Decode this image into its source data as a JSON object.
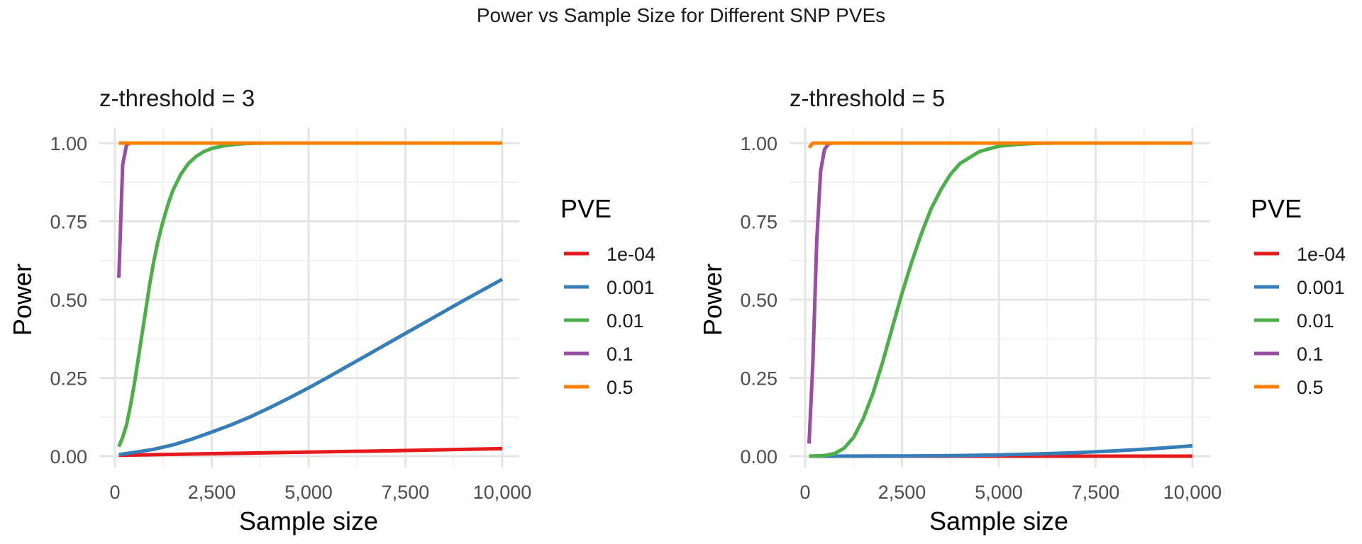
{
  "figure": {
    "title": "Power vs Sample Size for Different SNP PVEs"
  },
  "chart_data": [
    {
      "type": "line",
      "title": "z-threshold = 3",
      "xlabel": "Sample size",
      "ylabel": "Power",
      "xlim": [
        0,
        10000
      ],
      "ylim": [
        0,
        1
      ],
      "x_ticks": [
        0,
        2500,
        5000,
        7500,
        10000
      ],
      "x_tick_labels": [
        "0",
        "2,500",
        "5,000",
        "7,500",
        "10,000"
      ],
      "y_ticks": [
        0,
        0.25,
        0.5,
        0.75,
        1.0
      ],
      "y_tick_labels": [
        "0.00",
        "0.25",
        "0.50",
        "0.75",
        "1.00"
      ],
      "grid": true,
      "legend": {
        "title": "PVE",
        "placement": "right"
      },
      "series": [
        {
          "name": "1e-04",
          "color": "#E41A1C",
          "x": [
            100,
            2500,
            5000,
            7500,
            10000
          ],
          "y": [
            0.003,
            0.008,
            0.013,
            0.018,
            0.024
          ]
        },
        {
          "name": "0.001",
          "color": "#377EB8",
          "x": [
            100,
            500,
            1000,
            1500,
            2000,
            2500,
            3000,
            3500,
            4000,
            4500,
            5000,
            5500,
            6000,
            6500,
            7000,
            7500,
            8000,
            8500,
            9000,
            9500,
            10000
          ],
          "y": [
            0.005,
            0.012,
            0.022,
            0.036,
            0.055,
            0.077,
            0.1,
            0.126,
            0.155,
            0.186,
            0.218,
            0.252,
            0.287,
            0.322,
            0.357,
            0.392,
            0.427,
            0.462,
            0.497,
            0.531,
            0.565
          ]
        },
        {
          "name": "0.01",
          "color": "#4DAF4A",
          "x": [
            100,
            200,
            300,
            400,
            500,
            600,
            700,
            800,
            900,
            1000,
            1100,
            1200,
            1300,
            1400,
            1500,
            1700,
            1900,
            2100,
            2300,
            2500,
            2800,
            3100,
            3500,
            4000,
            5000,
            7500,
            10000
          ],
          "y": [
            0.03,
            0.06,
            0.1,
            0.16,
            0.23,
            0.31,
            0.39,
            0.47,
            0.55,
            0.62,
            0.68,
            0.73,
            0.775,
            0.815,
            0.85,
            0.9,
            0.935,
            0.958,
            0.973,
            0.983,
            0.991,
            0.996,
            0.999,
            1.0,
            1.0,
            1.0,
            1.0
          ]
        },
        {
          "name": "0.1",
          "color": "#984EA3",
          "x": [
            100,
            200,
            300,
            400,
            500,
            1000,
            2500,
            5000,
            7500,
            10000
          ],
          "y": [
            0.57,
            0.93,
            0.995,
            1.0,
            1.0,
            1.0,
            1.0,
            1.0,
            1.0,
            1.0
          ]
        },
        {
          "name": "0.5",
          "color": "#FF7F00",
          "x": [
            100,
            2500,
            5000,
            7500,
            10000
          ],
          "y": [
            1.0,
            1.0,
            1.0,
            1.0,
            1.0
          ]
        }
      ]
    },
    {
      "type": "line",
      "title": "z-threshold = 5",
      "xlabel": "Sample size",
      "ylabel": "Power",
      "xlim": [
        0,
        10000
      ],
      "ylim": [
        0,
        1
      ],
      "x_ticks": [
        0,
        2500,
        5000,
        7500,
        10000
      ],
      "x_tick_labels": [
        "0",
        "2,500",
        "5,000",
        "7,500",
        "10,000"
      ],
      "y_ticks": [
        0,
        0.25,
        0.5,
        0.75,
        1.0
      ],
      "y_tick_labels": [
        "0.00",
        "0.25",
        "0.50",
        "0.75",
        "1.00"
      ],
      "grid": true,
      "legend": {
        "title": "PVE",
        "placement": "right"
      },
      "series": [
        {
          "name": "1e-04",
          "color": "#E41A1C",
          "x": [
            100,
            2500,
            5000,
            7500,
            10000
          ],
          "y": [
            0.0,
            0.0,
            0.0,
            0.0,
            0.0
          ]
        },
        {
          "name": "0.001",
          "color": "#377EB8",
          "x": [
            100,
            2000,
            3000,
            4000,
            5000,
            6000,
            7000,
            8000,
            9000,
            10000
          ],
          "y": [
            0.0,
            0.0005,
            0.001,
            0.002,
            0.004,
            0.007,
            0.011,
            0.017,
            0.024,
            0.033
          ]
        },
        {
          "name": "0.01",
          "color": "#4DAF4A",
          "x": [
            100,
            500,
            750,
            1000,
            1250,
            1500,
            1750,
            2000,
            2250,
            2500,
            2750,
            3000,
            3250,
            3500,
            3750,
            4000,
            4500,
            5000,
            5500,
            6000,
            6500,
            7500,
            10000
          ],
          "y": [
            0.0,
            0.002,
            0.008,
            0.025,
            0.06,
            0.12,
            0.2,
            0.3,
            0.41,
            0.52,
            0.62,
            0.71,
            0.79,
            0.85,
            0.9,
            0.935,
            0.973,
            0.99,
            0.996,
            0.999,
            1.0,
            1.0,
            1.0
          ]
        },
        {
          "name": "0.1",
          "color": "#984EA3",
          "x": [
            100,
            200,
            300,
            400,
            500,
            600,
            700,
            1000,
            2500,
            5000,
            7500,
            10000
          ],
          "y": [
            0.04,
            0.3,
            0.69,
            0.91,
            0.98,
            0.997,
            1.0,
            1.0,
            1.0,
            1.0,
            1.0,
            1.0
          ]
        },
        {
          "name": "0.5",
          "color": "#FF7F00",
          "x": [
            100,
            200,
            300,
            2500,
            5000,
            7500,
            10000
          ],
          "y": [
            0.985,
            1.0,
            1.0,
            1.0,
            1.0,
            1.0,
            1.0
          ]
        }
      ]
    }
  ]
}
